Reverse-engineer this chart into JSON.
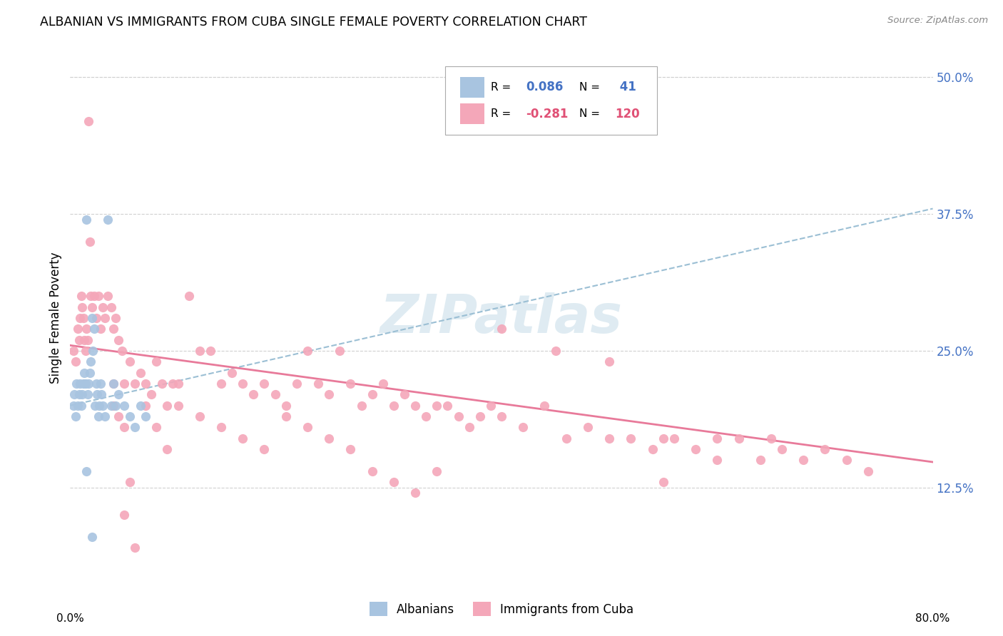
{
  "title": "ALBANIAN VS IMMIGRANTS FROM CUBA SINGLE FEMALE POVERTY CORRELATION CHART",
  "source": "Source: ZipAtlas.com",
  "ylabel": "Single Female Poverty",
  "ytick_labels": [
    "12.5%",
    "25.0%",
    "37.5%",
    "50.0%"
  ],
  "ytick_values": [
    0.125,
    0.25,
    0.375,
    0.5
  ],
  "xlim": [
    0.0,
    0.8
  ],
  "ylim": [
    0.03,
    0.53
  ],
  "color_albanian": "#a8c4e0",
  "color_cuba": "#f4a7b9",
  "line_color_albanian": "#6baed6",
  "line_color_cuba": "#e87a9a",
  "trendline_dash_color": "#9bbfd4",
  "watermark": "ZIPatlas",
  "albanian_x": [
    0.003,
    0.004,
    0.005,
    0.006,
    0.007,
    0.008,
    0.009,
    0.01,
    0.011,
    0.012,
    0.013,
    0.014,
    0.015,
    0.016,
    0.017,
    0.018,
    0.019,
    0.02,
    0.021,
    0.022,
    0.023,
    0.024,
    0.025,
    0.026,
    0.027,
    0.028,
    0.029,
    0.03,
    0.032,
    0.035,
    0.038,
    0.04,
    0.042,
    0.045,
    0.05,
    0.055,
    0.06,
    0.065,
    0.07,
    0.015,
    0.02
  ],
  "albanian_y": [
    0.2,
    0.21,
    0.19,
    0.22,
    0.2,
    0.21,
    0.22,
    0.2,
    0.21,
    0.22,
    0.23,
    0.22,
    0.37,
    0.21,
    0.22,
    0.23,
    0.24,
    0.28,
    0.25,
    0.27,
    0.2,
    0.22,
    0.21,
    0.19,
    0.2,
    0.22,
    0.21,
    0.2,
    0.19,
    0.37,
    0.2,
    0.22,
    0.2,
    0.21,
    0.2,
    0.19,
    0.18,
    0.2,
    0.19,
    0.14,
    0.08
  ],
  "cuba_x": [
    0.003,
    0.005,
    0.007,
    0.008,
    0.009,
    0.01,
    0.011,
    0.012,
    0.013,
    0.014,
    0.015,
    0.016,
    0.017,
    0.018,
    0.019,
    0.02,
    0.022,
    0.024,
    0.026,
    0.028,
    0.03,
    0.032,
    0.035,
    0.038,
    0.04,
    0.042,
    0.045,
    0.048,
    0.05,
    0.055,
    0.06,
    0.065,
    0.07,
    0.075,
    0.08,
    0.085,
    0.09,
    0.095,
    0.1,
    0.11,
    0.12,
    0.13,
    0.14,
    0.15,
    0.16,
    0.17,
    0.18,
    0.19,
    0.2,
    0.21,
    0.22,
    0.23,
    0.24,
    0.25,
    0.26,
    0.27,
    0.28,
    0.29,
    0.3,
    0.31,
    0.32,
    0.33,
    0.34,
    0.35,
    0.36,
    0.37,
    0.38,
    0.39,
    0.4,
    0.42,
    0.44,
    0.46,
    0.48,
    0.5,
    0.52,
    0.54,
    0.56,
    0.58,
    0.6,
    0.62,
    0.64,
    0.66,
    0.68,
    0.7,
    0.72,
    0.74,
    0.4,
    0.45,
    0.5,
    0.55,
    0.6,
    0.65,
    0.55,
    0.07,
    0.08,
    0.09,
    0.1,
    0.12,
    0.14,
    0.16,
    0.18,
    0.2,
    0.22,
    0.24,
    0.26,
    0.28,
    0.3,
    0.32,
    0.34,
    0.04,
    0.045,
    0.05,
    0.055,
    0.06,
    0.04,
    0.05
  ],
  "cuba_y": [
    0.25,
    0.24,
    0.27,
    0.26,
    0.28,
    0.3,
    0.29,
    0.28,
    0.26,
    0.25,
    0.27,
    0.26,
    0.46,
    0.35,
    0.3,
    0.29,
    0.3,
    0.28,
    0.3,
    0.27,
    0.29,
    0.28,
    0.3,
    0.29,
    0.27,
    0.28,
    0.26,
    0.25,
    0.22,
    0.24,
    0.22,
    0.23,
    0.22,
    0.21,
    0.24,
    0.22,
    0.2,
    0.22,
    0.22,
    0.3,
    0.25,
    0.25,
    0.22,
    0.23,
    0.22,
    0.21,
    0.22,
    0.21,
    0.2,
    0.22,
    0.25,
    0.22,
    0.21,
    0.25,
    0.22,
    0.2,
    0.21,
    0.22,
    0.2,
    0.21,
    0.2,
    0.19,
    0.2,
    0.2,
    0.19,
    0.18,
    0.19,
    0.2,
    0.19,
    0.18,
    0.2,
    0.17,
    0.18,
    0.17,
    0.17,
    0.16,
    0.17,
    0.16,
    0.15,
    0.17,
    0.15,
    0.16,
    0.15,
    0.16,
    0.15,
    0.14,
    0.27,
    0.25,
    0.24,
    0.17,
    0.17,
    0.17,
    0.13,
    0.2,
    0.18,
    0.16,
    0.2,
    0.19,
    0.18,
    0.17,
    0.16,
    0.19,
    0.18,
    0.17,
    0.16,
    0.14,
    0.13,
    0.12,
    0.14,
    0.2,
    0.19,
    0.18,
    0.13,
    0.07,
    0.22,
    0.1
  ]
}
